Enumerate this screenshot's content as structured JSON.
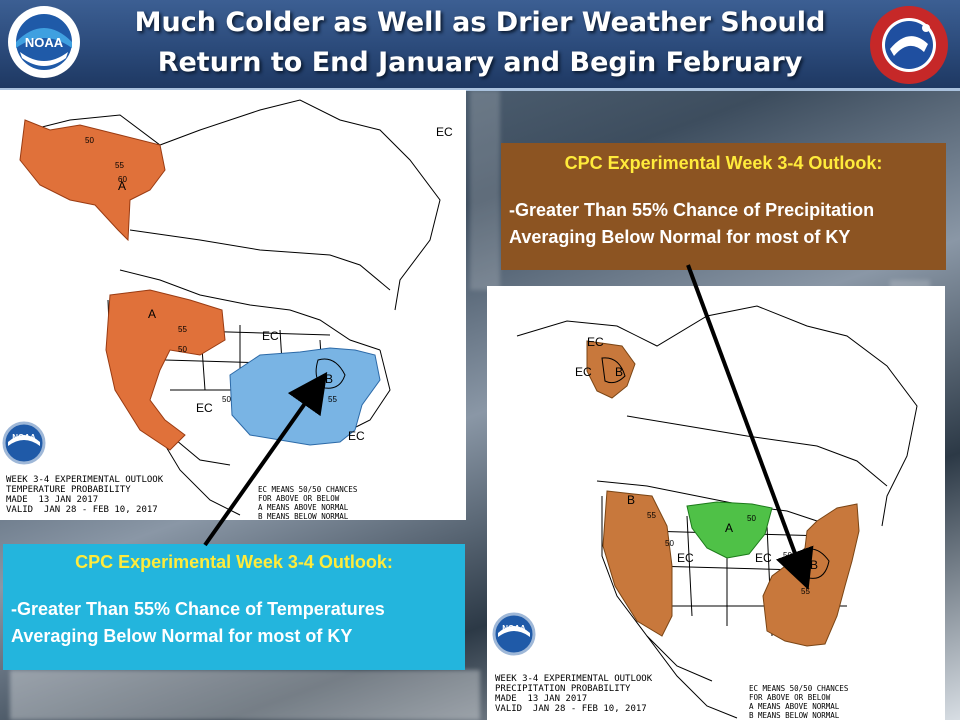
{
  "header": {
    "title_line1": "Much Colder as Well as Drier Weather Should",
    "title_line2": "Return to End January and Begin February",
    "left_logo": "noaa-logo",
    "right_logo": "national-weather-service-logo",
    "nws_ring_text": "NATIONAL WEATHER SERVICE"
  },
  "temp_map": {
    "caption": "WEEK 3-4 EXPERIMENTAL OUTLOOK\nTEMPERATURE PROBABILITY\nMADE  13 JAN 2017\nVALID  JAN 28 - FEB 10, 2017",
    "legend": "EC MEANS 50/50 CHANCES\nFOR ABOVE OR BELOW\nA MEANS ABOVE NORMAL\nB MEANS BELOW NORMAL",
    "labels": {
      "a": "A",
      "b": "B",
      "ec": "EC",
      "p50": "50",
      "p55": "55",
      "p60": "60"
    },
    "colors": {
      "above": "#e0713a",
      "below": "#79b4e4"
    }
  },
  "precip_map": {
    "caption": "WEEK 3-4 EXPERIMENTAL OUTLOOK\nPRECIPITATION PROBABILITY\nMADE  13 JAN 2017\nVALID  JAN 28 - FEB 10, 2017",
    "legend": "EC MEANS 50/50 CHANCES\nFOR ABOVE OR BELOW\nA MEANS ABOVE NORMAL\nB MEANS BELOW NORMAL",
    "labels": {
      "a": "A",
      "b": "B",
      "ec": "EC",
      "p50": "50",
      "p55": "55"
    },
    "colors": {
      "below": "#c8783c",
      "above": "#4fc147"
    }
  },
  "precip_outlook": {
    "heading": "CPC Experimental Week 3-4  Outlook:",
    "line1": "-Greater Than 55% Chance of Precipitation",
    "line2": "Averaging Below Normal for most of KY"
  },
  "temp_outlook": {
    "heading": "CPC Experimental Week 3-4  Outlook:",
    "line1": "-Greater Than 55% Chance of Temperatures",
    "line2": "Averaging Below Normal for most of KY"
  },
  "noaa_badge_text": "NOAA"
}
